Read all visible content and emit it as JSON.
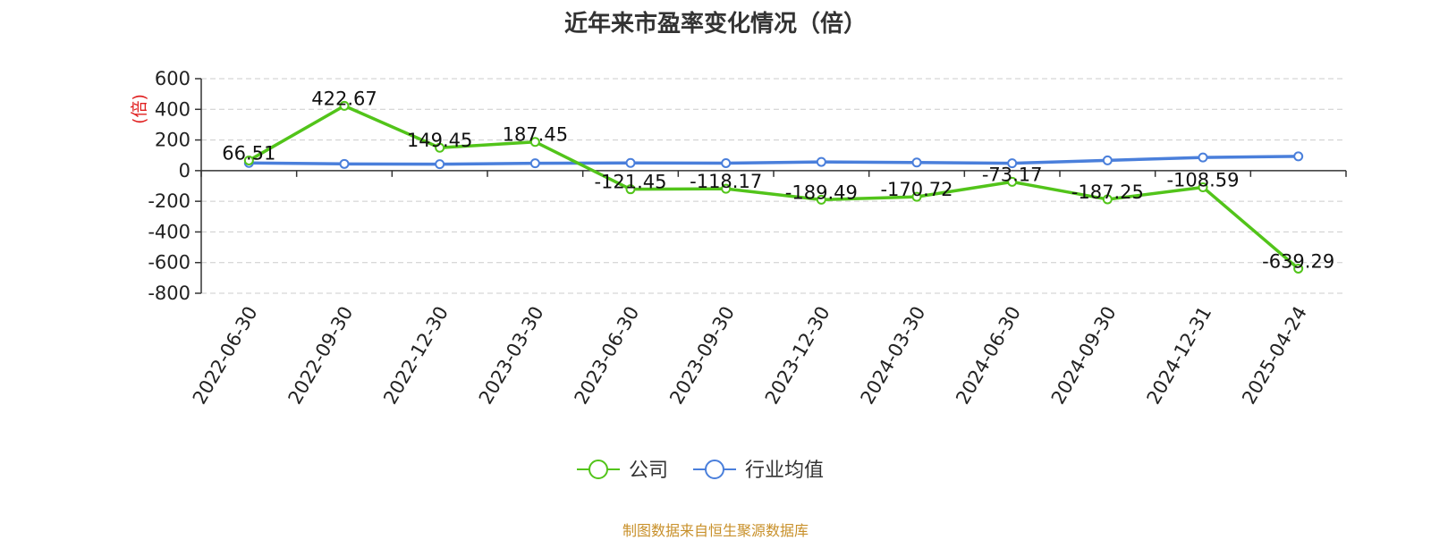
{
  "chart_data": {
    "type": "line",
    "title": "近年来市盈率变化情况（倍）",
    "ylabel": "(倍)",
    "xlabel": "",
    "ylim": [
      -800,
      600
    ],
    "yticks": [
      600,
      400,
      200,
      0,
      -200,
      -400,
      -600,
      -800
    ],
    "grid": true,
    "legend_position": "bottom-center",
    "categories": [
      "2022-06-30",
      "2022-09-30",
      "2022-12-30",
      "2023-03-30",
      "2023-06-30",
      "2023-09-30",
      "2023-12-30",
      "2024-03-30",
      "2024-06-30",
      "2024-09-30",
      "2024-12-31",
      "2025-04-24"
    ],
    "series": [
      {
        "name": "公司",
        "color": "#52c41a",
        "values": [
          66.51,
          422.67,
          149.45,
          187.45,
          -121.45,
          -118.17,
          -189.49,
          -170.72,
          -73.17,
          -187.25,
          -108.59,
          -639.29
        ],
        "labels": [
          "66.51",
          "422.67",
          "149.45",
          "187.45",
          "-121.45",
          "-118.17",
          "-189.49",
          "-170.72",
          "-73.17",
          "-187.25",
          "-108.59",
          "-639.29"
        ]
      },
      {
        "name": "行业均值",
        "color": "#4a7fdb",
        "values": [
          50,
          44,
          42,
          48,
          50,
          49,
          57,
          53,
          48,
          67,
          86,
          93
        ]
      }
    ],
    "source": "制图数据来自恒生聚源数据库"
  }
}
